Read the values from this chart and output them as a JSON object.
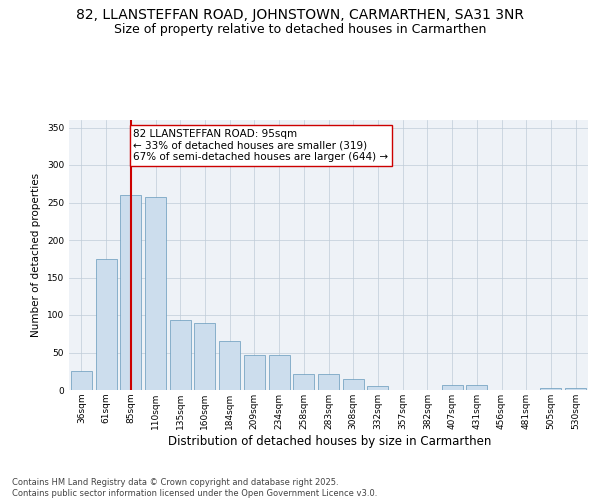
{
  "title": "82, LLANSTEFFAN ROAD, JOHNSTOWN, CARMARTHEN, SA31 3NR",
  "subtitle": "Size of property relative to detached houses in Carmarthen",
  "xlabel": "Distribution of detached houses by size in Carmarthen",
  "ylabel": "Number of detached properties",
  "categories": [
    "36sqm",
    "61sqm",
    "85sqm",
    "110sqm",
    "135sqm",
    "160sqm",
    "184sqm",
    "209sqm",
    "234sqm",
    "258sqm",
    "283sqm",
    "308sqm",
    "332sqm",
    "357sqm",
    "382sqm",
    "407sqm",
    "431sqm",
    "456sqm",
    "481sqm",
    "505sqm",
    "530sqm"
  ],
  "values": [
    25,
    175,
    260,
    258,
    93,
    90,
    65,
    47,
    47,
    22,
    22,
    15,
    5,
    0,
    0,
    7,
    7,
    0,
    0,
    3,
    3
  ],
  "bar_color": "#ccdded",
  "bar_edge_color": "#6699bb",
  "vline_x": 2,
  "vline_color": "#cc0000",
  "annotation_text": "82 LLANSTEFFAN ROAD: 95sqm\n← 33% of detached houses are smaller (319)\n67% of semi-detached houses are larger (644) →",
  "annotation_box_color": "#ffffff",
  "annotation_box_edge": "#cc0000",
  "ylim": [
    0,
    360
  ],
  "yticks": [
    0,
    50,
    100,
    150,
    200,
    250,
    300,
    350
  ],
  "bg_color": "#eef2f7",
  "footer": "Contains HM Land Registry data © Crown copyright and database right 2025.\nContains public sector information licensed under the Open Government Licence v3.0.",
  "title_fontsize": 10,
  "subtitle_fontsize": 9,
  "xlabel_fontsize": 8.5,
  "ylabel_fontsize": 7.5,
  "tick_fontsize": 6.5,
  "annotation_fontsize": 7.5,
  "footer_fontsize": 6
}
